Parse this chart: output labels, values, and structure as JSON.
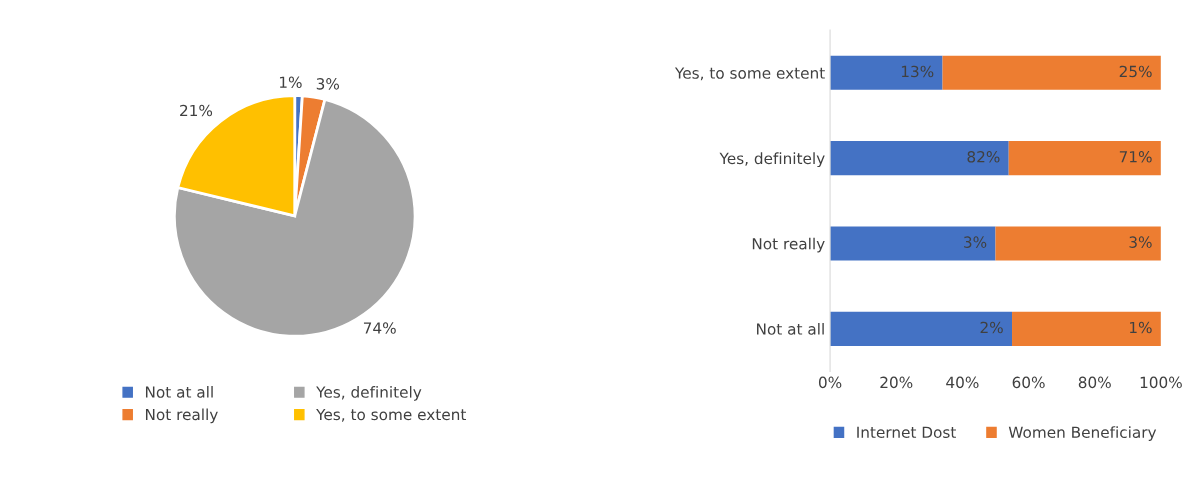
{
  "chart_data": [
    {
      "type": "pie",
      "categories": [
        "Not at all",
        "Not really",
        "Yes, definitely",
        "Yes, to some extent"
      ],
      "values": [
        1,
        3,
        74,
        21
      ],
      "colors": [
        "#4472c4",
        "#ed7d31",
        "#a5a5a5",
        "#ffc000"
      ],
      "value_labels": [
        "1%",
        "3%",
        "74%",
        "21%"
      ],
      "legend": "bottom"
    },
    {
      "type": "bar",
      "orientation": "horizontal",
      "stacked": true,
      "categories": [
        "Yes, to some extent",
        "Yes, definitely",
        "Not really",
        "Not at all"
      ],
      "series": [
        {
          "name": "Internet Dost",
          "color": "#4472c4",
          "values": [
            34,
            54,
            50,
            55
          ]
        },
        {
          "name": "Women Beneficiary",
          "color": "#ed7d31",
          "values": [
            66,
            46,
            50,
            45
          ]
        }
      ],
      "annotations": [
        {
          "text": "13%",
          "x": 34,
          "y": "Yes, to some extent"
        },
        {
          "text": "82%",
          "x": 54,
          "y": "Yes, definitely"
        },
        {
          "text": "3%",
          "x": 50,
          "y": "Not really"
        },
        {
          "text": "2%",
          "x": 55,
          "y": "Not at all"
        },
        {
          "text": "25%",
          "x": 100,
          "y": "Yes, to some extent"
        },
        {
          "text": "71%",
          "x": 100,
          "y": "Yes, definitely"
        },
        {
          "text": "3%",
          "x": 100,
          "y": "Not really"
        },
        {
          "text": "1%",
          "x": 100,
          "y": "Not at all"
        }
      ],
      "grid": false,
      "xlim": [
        0,
        100
      ],
      "xticks": [
        {
          "value": 0,
          "label": "0%"
        },
        {
          "value": 20,
          "label": "20%"
        },
        {
          "value": 40,
          "label": "40%"
        },
        {
          "value": 60,
          "label": "60%"
        },
        {
          "value": 80,
          "label": "80%"
        },
        {
          "value": 100,
          "label": "100%"
        }
      ],
      "legend": "bottom"
    }
  ]
}
